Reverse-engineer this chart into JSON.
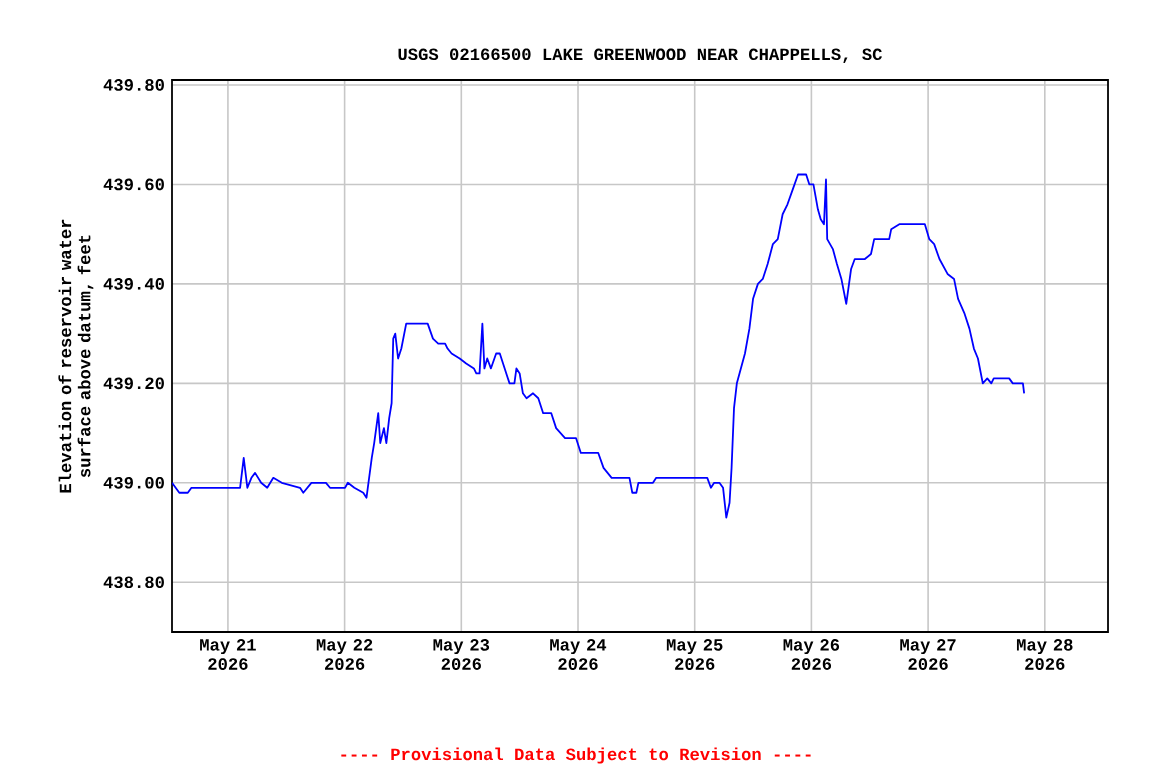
{
  "chart_data": {
    "type": "line",
    "title": "USGS 02166500 LAKE GREENWOOD NEAR CHAPPELLS, SC",
    "ylabel": "Elevation of reservoir water surface above datum, feet",
    "annotations": [
      "---- Provisional Data Subject to Revision ----"
    ],
    "xlim": [
      "2026-05-20T12:30",
      "2026-05-28T13:00"
    ],
    "xticks": [
      {
        "value": "2026-05-21",
        "label": "May 21 2026"
      },
      {
        "value": "2026-05-22",
        "label": "May 22 2026"
      },
      {
        "value": "2026-05-23",
        "label": "May 23 2026"
      },
      {
        "value": "2026-05-24",
        "label": "May 24 2026"
      },
      {
        "value": "2026-05-25",
        "label": "May 25 2026"
      },
      {
        "value": "2026-05-26",
        "label": "May 26 2026"
      },
      {
        "value": "2026-05-27",
        "label": "May 27 2026"
      },
      {
        "value": "2026-05-28",
        "label": "May 28 2026"
      }
    ],
    "ylim": [
      438.7,
      439.81
    ],
    "yticks": [
      {
        "value": 438.8,
        "label": "438.80"
      },
      {
        "value": 439.0,
        "label": "439.00"
      },
      {
        "value": 439.2,
        "label": "439.20"
      },
      {
        "value": 439.4,
        "label": "439.40"
      },
      {
        "value": 439.6,
        "label": "439.60"
      },
      {
        "value": 439.8,
        "label": "439.80"
      }
    ],
    "grid": true,
    "marker": "none",
    "line_style": "solid",
    "series": [
      {
        "color": "#0000ff",
        "x": [
          "2026-05-20T12:30",
          "2026-05-20T14:00",
          "2026-05-20T15:45",
          "2026-05-20T16:30",
          "2026-05-20T17:05",
          "2026-05-21T02:30",
          "2026-05-21T03:15",
          "2026-05-21T04:00",
          "2026-05-21T04:50",
          "2026-05-21T05:35",
          "2026-05-21T06:50",
          "2026-05-21T08:05",
          "2026-05-21T09:20",
          "2026-05-21T11:05",
          "2026-05-21T14:50",
          "2026-05-21T15:30",
          "2026-05-21T17:10",
          "2026-05-21T20:10",
          "2026-05-21T21:00",
          "2026-05-22T00:05",
          "2026-05-22T00:40",
          "2026-05-22T02:00",
          "2026-05-22T03:50",
          "2026-05-22T04:30",
          "2026-05-22T05:35",
          "2026-05-22T06:05",
          "2026-05-22T06:55",
          "2026-05-22T07:20",
          "2026-05-22T08:05",
          "2026-05-22T08:35",
          "2026-05-22T09:10",
          "2026-05-22T09:40",
          "2026-05-22T10:00",
          "2026-05-22T10:25",
          "2026-05-22T11:00",
          "2026-05-22T11:40",
          "2026-05-22T12:40",
          "2026-05-22T17:05",
          "2026-05-22T18:10",
          "2026-05-22T19:15",
          "2026-05-22T20:40",
          "2026-05-22T21:10",
          "2026-05-22T22:00",
          "2026-05-22T23:40",
          "2026-05-23T01:00",
          "2026-05-23T02:35",
          "2026-05-23T03:05",
          "2026-05-23T03:45",
          "2026-05-23T04:20",
          "2026-05-23T04:45",
          "2026-05-23T05:20",
          "2026-05-23T06:05",
          "2026-05-23T07:10",
          "2026-05-23T07:55",
          "2026-05-23T08:35",
          "2026-05-23T09:55",
          "2026-05-23T10:55",
          "2026-05-23T11:20",
          "2026-05-23T12:00",
          "2026-05-23T12:40",
          "2026-05-23T13:25",
          "2026-05-23T14:45",
          "2026-05-23T15:50",
          "2026-05-23T16:50",
          "2026-05-23T18:30",
          "2026-05-23T19:30",
          "2026-05-23T21:20",
          "2026-05-23T23:35",
          "2026-05-24T00:35",
          "2026-05-24T04:10",
          "2026-05-24T05:15",
          "2026-05-24T06:55",
          "2026-05-24T10:35",
          "2026-05-24T11:10",
          "2026-05-24T12:00",
          "2026-05-24T12:25",
          "2026-05-24T15:25",
          "2026-05-24T16:05",
          "2026-05-25T02:35",
          "2026-05-25T03:20",
          "2026-05-25T04:00",
          "2026-05-25T05:05",
          "2026-05-25T05:50",
          "2026-05-25T06:30",
          "2026-05-25T07:10",
          "2026-05-25T07:35",
          "2026-05-25T08:05",
          "2026-05-25T08:40",
          "2026-05-25T09:30",
          "2026-05-25T10:20",
          "2026-05-25T11:15",
          "2026-05-25T12:00",
          "2026-05-25T13:00",
          "2026-05-25T14:00",
          "2026-05-25T15:00",
          "2026-05-25T16:05",
          "2026-05-25T17:05",
          "2026-05-25T18:05",
          "2026-05-25T19:05",
          "2026-05-25T20:10",
          "2026-05-25T21:15",
          "2026-05-25T21:30",
          "2026-05-25T22:55",
          "2026-05-25T23:35",
          "2026-05-26T00:25",
          "2026-05-26T01:20",
          "2026-05-26T01:55",
          "2026-05-26T02:35",
          "2026-05-26T03:00",
          "2026-05-26T03:15",
          "2026-05-26T04:25",
          "2026-05-26T05:15",
          "2026-05-26T06:10",
          "2026-05-26T07:10",
          "2026-05-26T08:10",
          "2026-05-26T08:55",
          "2026-05-26T11:00",
          "2026-05-26T12:15",
          "2026-05-26T12:55",
          "2026-05-26T16:00",
          "2026-05-26T16:25",
          "2026-05-26T18:05",
          "2026-05-26T23:20",
          "2026-05-27T00:15",
          "2026-05-27T01:15",
          "2026-05-27T02:20",
          "2026-05-27T04:00",
          "2026-05-27T05:20",
          "2026-05-27T06:10",
          "2026-05-27T07:30",
          "2026-05-27T08:30",
          "2026-05-27T09:25",
          "2026-05-27T10:15",
          "2026-05-27T11:15",
          "2026-05-27T12:10",
          "2026-05-27T13:00",
          "2026-05-27T13:30",
          "2026-05-27T16:40",
          "2026-05-27T17:25",
          "2026-05-27T19:30",
          "2026-05-27T19:45"
        ],
        "values": [
          439.0,
          438.98,
          438.98,
          438.99,
          438.99,
          438.99,
          439.05,
          438.99,
          439.01,
          439.02,
          439.0,
          438.99,
          439.01,
          439.0,
          438.99,
          438.98,
          439.0,
          439.0,
          438.99,
          438.99,
          439.0,
          438.99,
          438.98,
          438.97,
          439.05,
          439.08,
          439.14,
          439.08,
          439.11,
          439.08,
          439.13,
          439.16,
          439.29,
          439.3,
          439.25,
          439.27,
          439.32,
          439.32,
          439.29,
          439.28,
          439.28,
          439.27,
          439.26,
          439.25,
          439.24,
          439.23,
          439.22,
          439.22,
          439.32,
          439.23,
          439.25,
          439.23,
          439.26,
          439.26,
          439.24,
          439.2,
          439.2,
          439.23,
          439.22,
          439.18,
          439.17,
          439.18,
          439.17,
          439.14,
          439.14,
          439.11,
          439.09,
          439.09,
          439.06,
          439.06,
          439.03,
          439.01,
          439.01,
          438.98,
          438.98,
          439.0,
          439.0,
          439.01,
          439.01,
          438.99,
          439.0,
          439.0,
          438.99,
          438.93,
          438.96,
          439.03,
          439.15,
          439.2,
          439.23,
          439.26,
          439.31,
          439.37,
          439.4,
          439.41,
          439.44,
          439.48,
          439.49,
          439.54,
          439.56,
          439.59,
          439.62,
          439.62,
          439.62,
          439.6,
          439.6,
          439.55,
          439.53,
          439.52,
          439.61,
          439.49,
          439.47,
          439.44,
          439.41,
          439.36,
          439.43,
          439.45,
          439.45,
          439.46,
          439.49,
          439.49,
          439.51,
          439.52,
          439.52,
          439.49,
          439.48,
          439.45,
          439.42,
          439.41,
          439.37,
          439.34,
          439.31,
          439.27,
          439.25,
          439.2,
          439.21,
          439.2,
          439.21,
          439.21,
          439.2,
          439.2,
          439.18
        ]
      }
    ]
  }
}
